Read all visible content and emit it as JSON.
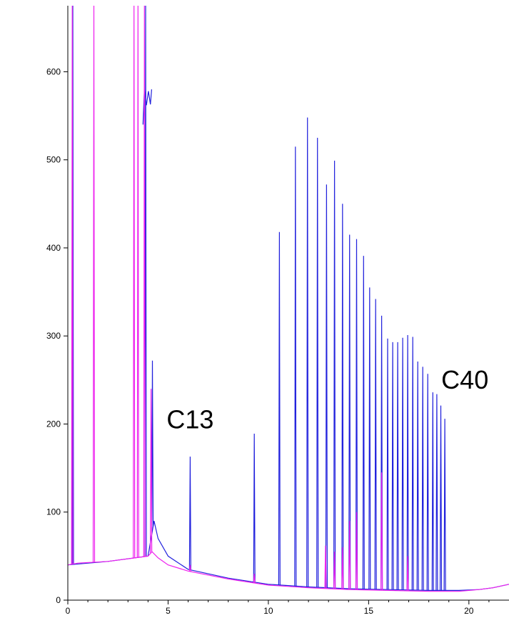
{
  "chart_data": {
    "type": "line",
    "title": "",
    "xlabel": "",
    "ylabel": "",
    "xlim": [
      0,
      22
    ],
    "ylim": [
      0,
      675
    ],
    "grid": false,
    "legend": "none",
    "x_ticks": [
      0,
      5,
      10,
      15,
      20
    ],
    "y_ticks": [
      0,
      100,
      200,
      300,
      400,
      500,
      600
    ],
    "annotations": [
      {
        "text": "C13",
        "x": 6.1,
        "y": 195
      },
      {
        "text": "C40",
        "x": 19.8,
        "y": 240
      }
    ],
    "series": [
      {
        "color": "#2222dd",
        "baseline": [
          [
            0,
            40
          ],
          [
            2,
            44
          ],
          [
            4,
            50
          ],
          [
            4.3,
            90
          ],
          [
            4.5,
            70
          ],
          [
            5,
            50
          ],
          [
            6,
            35
          ],
          [
            8,
            25
          ],
          [
            10,
            18
          ],
          [
            12,
            15
          ],
          [
            14,
            13
          ],
          [
            16,
            12
          ],
          [
            18,
            11
          ],
          [
            19.5,
            11
          ],
          [
            20.5,
            12
          ],
          [
            21.2,
            14
          ],
          [
            22,
            18
          ]
        ],
        "peaks": [
          {
            "x": 0.25,
            "y": 680
          },
          {
            "x": 3.88,
            "y": 680
          },
          {
            "x": 4.22,
            "y": 272
          },
          {
            "x": 6.1,
            "y": 163
          },
          {
            "x": 9.3,
            "y": 189
          },
          {
            "x": 10.55,
            "y": 418
          },
          {
            "x": 11.35,
            "y": 515
          },
          {
            "x": 11.95,
            "y": 548
          },
          {
            "x": 12.45,
            "y": 525
          },
          {
            "x": 12.9,
            "y": 472
          },
          {
            "x": 13.3,
            "y": 499
          },
          {
            "x": 13.7,
            "y": 450
          },
          {
            "x": 14.05,
            "y": 415
          },
          {
            "x": 14.4,
            "y": 410
          },
          {
            "x": 14.75,
            "y": 391
          },
          {
            "x": 15.05,
            "y": 355
          },
          {
            "x": 15.35,
            "y": 342
          },
          {
            "x": 15.65,
            "y": 323
          },
          {
            "x": 15.95,
            "y": 297
          },
          {
            "x": 16.2,
            "y": 293
          },
          {
            "x": 16.45,
            "y": 293
          },
          {
            "x": 16.7,
            "y": 298
          },
          {
            "x": 16.95,
            "y": 301
          },
          {
            "x": 17.2,
            "y": 299
          },
          {
            "x": 17.45,
            "y": 271
          },
          {
            "x": 17.7,
            "y": 265
          },
          {
            "x": 17.95,
            "y": 257
          },
          {
            "x": 18.2,
            "y": 236
          },
          {
            "x": 18.4,
            "y": 234
          },
          {
            "x": 18.6,
            "y": 221
          },
          {
            "x": 18.8,
            "y": 206
          }
        ],
        "cluster": [
          [
            3.75,
            540
          ],
          [
            3.82,
            580
          ],
          [
            3.92,
            562
          ],
          [
            4.02,
            578
          ],
          [
            4.12,
            563
          ],
          [
            4.18,
            580
          ]
        ]
      },
      {
        "color": "#ee22ee",
        "baseline": [
          [
            0,
            40
          ],
          [
            0.5,
            42
          ],
          [
            2,
            44
          ],
          [
            4,
            50
          ],
          [
            4.2,
            55
          ],
          [
            4.5,
            48
          ],
          [
            5,
            40
          ],
          [
            6,
            33
          ],
          [
            8,
            24
          ],
          [
            10,
            17
          ],
          [
            12,
            14
          ],
          [
            14,
            12
          ],
          [
            16,
            11
          ],
          [
            18,
            10
          ],
          [
            19.5,
            10
          ],
          [
            20.5,
            12
          ],
          [
            21.2,
            14
          ],
          [
            22,
            18
          ]
        ],
        "peaks": [
          {
            "x": 0.22,
            "y": 680
          },
          {
            "x": 1.3,
            "y": 680
          },
          {
            "x": 3.3,
            "y": 680
          },
          {
            "x": 3.5,
            "y": 680
          },
          {
            "x": 3.82,
            "y": 680
          },
          {
            "x": 4.15,
            "y": 240
          },
          {
            "x": 6.1,
            "y": 40
          },
          {
            "x": 9.3,
            "y": 30
          },
          {
            "x": 12.85,
            "y": 62
          },
          {
            "x": 13.3,
            "y": 55
          },
          {
            "x": 13.7,
            "y": 60
          },
          {
            "x": 14.05,
            "y": 90
          },
          {
            "x": 14.4,
            "y": 100
          },
          {
            "x": 15.65,
            "y": 145
          },
          {
            "x": 16.95,
            "y": 50
          }
        ],
        "cluster": []
      }
    ]
  }
}
